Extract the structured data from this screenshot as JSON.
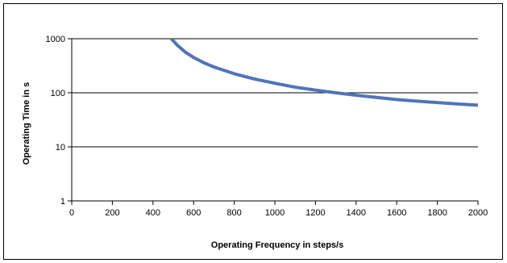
{
  "chart_data": {
    "type": "line",
    "title": "",
    "xlabel": "Operating Frequency in steps/s",
    "ylabel": "Operating Time in s",
    "xlim": [
      0,
      2000
    ],
    "ylim": [
      1,
      1000
    ],
    "yscale": "log",
    "grid": {
      "x": false,
      "y": true
    },
    "legend": "none",
    "x_ticks": [
      "0",
      "200",
      "400",
      "600",
      "800",
      "1000",
      "1200",
      "1400",
      "1600",
      "1800",
      "2000"
    ],
    "y_ticks": [
      "1",
      "10",
      "100",
      "1000"
    ],
    "series": [
      {
        "color": "#4f74b9",
        "x": [
          490,
          520,
          560,
          600,
          650,
          700,
          800,
          900,
          1000,
          1100,
          1200,
          1300,
          1400,
          1500,
          1600,
          1700,
          1800,
          1900,
          2000
        ],
        "y": [
          1000,
          760,
          560,
          450,
          360,
          300,
          225,
          180,
          150,
          127,
          112,
          100,
          90,
          82,
          75,
          70,
          66,
          62,
          59
        ]
      }
    ]
  }
}
